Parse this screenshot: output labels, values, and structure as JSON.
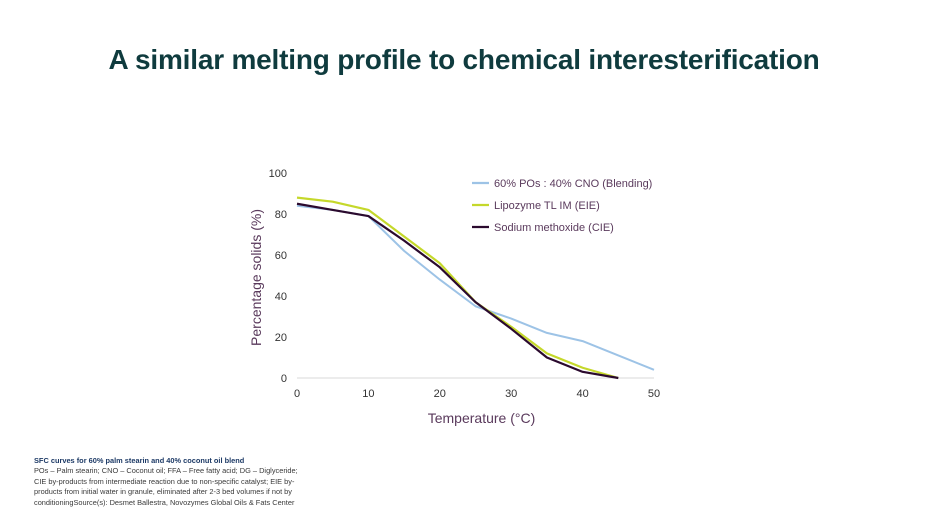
{
  "slide": {
    "title": "A similar melting profile to chemical interesterification"
  },
  "footnote": {
    "title": "SFC curves for 60% palm stearin and 40% coconut oil blend",
    "lines": [
      "POs – Palm stearin; CNO – Coconut oil; FFA – Free fatty acid; DG – Diglyceride;",
      "CIE by-products from intermediate reaction due to non-specific catalyst; EIE by-",
      "products from initial water in granule, eliminated after 2-3 bed volumes if not by",
      "conditioningSource(s): Desmet Ballestra, Novozymes Global Oils & Fats Center"
    ]
  },
  "chart_data": {
    "type": "line",
    "title": "",
    "xlabel": "Temperature (°C)",
    "ylabel": "Percentage solids (%)",
    "xlim": [
      0,
      50
    ],
    "ylim": [
      0,
      100
    ],
    "xticks": [
      0,
      10,
      20,
      30,
      40,
      50
    ],
    "yticks": [
      0,
      20,
      40,
      60,
      80,
      100
    ],
    "grid": false,
    "legend_position": "top-right",
    "series": [
      {
        "name": "60% POs : 40% CNO (Blending)",
        "color": "#9dc3e6",
        "x": [
          0,
          5,
          10,
          15,
          20,
          25,
          30,
          35,
          40,
          45,
          50
        ],
        "y": [
          84,
          82,
          79,
          62,
          48,
          35,
          29,
          22,
          18,
          11,
          4
        ]
      },
      {
        "name": "Lipozyme TL IM (EIE)",
        "color": "#c5d82b",
        "x": [
          0,
          5,
          10,
          15,
          20,
          25,
          30,
          35,
          40,
          45
        ],
        "y": [
          88,
          86,
          82,
          69,
          56,
          37,
          25,
          12,
          5,
          0
        ]
      },
      {
        "name": "Sodium methoxide (CIE)",
        "color": "#2b0a2e",
        "x": [
          0,
          5,
          10,
          15,
          20,
          25,
          30,
          35,
          40,
          45
        ],
        "y": [
          85,
          82,
          79,
          67,
          54,
          37,
          24,
          10,
          3,
          0
        ]
      }
    ]
  }
}
